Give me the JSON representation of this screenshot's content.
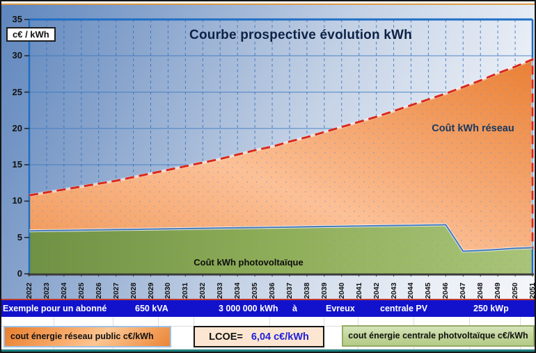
{
  "chart": {
    "title": "Courbe prospective évolution kWh",
    "y_axis_unit": "c€ / kWh",
    "series_label_reseau": "Coût kWh réseau",
    "series_label_pv": "Coût kWh photovoltaïque"
  },
  "chart_data": {
    "type": "area",
    "x": [
      2022,
      2023,
      2024,
      2025,
      2026,
      2027,
      2028,
      2029,
      2030,
      2031,
      2032,
      2033,
      2034,
      2035,
      2036,
      2037,
      2038,
      2039,
      2040,
      2041,
      2042,
      2043,
      2044,
      2045,
      2046,
      2047,
      2048,
      2049,
      2050,
      2051
    ],
    "series": [
      {
        "name": "cout énergie réseau public c€/kWh",
        "values": [
          10.8,
          11.2,
          11.6,
          12.0,
          12.4,
          12.8,
          13.3,
          13.8,
          14.3,
          14.8,
          15.3,
          15.8,
          16.4,
          17.0,
          17.5,
          18.2,
          18.8,
          19.5,
          20.2,
          20.9,
          21.6,
          22.4,
          23.2,
          24.0,
          24.8,
          25.7,
          26.6,
          27.6,
          28.5,
          29.5
        ],
        "fill": "orange-gradient",
        "line_color": "#d8281b",
        "line_style": "dashed"
      },
      {
        "name": "cout énergie centrale photvoltaïque c€/kWh",
        "values": [
          5.9,
          5.94,
          5.97,
          6.01,
          6.04,
          6.08,
          6.11,
          6.15,
          6.18,
          6.22,
          6.25,
          6.29,
          6.32,
          6.36,
          6.39,
          6.43,
          6.46,
          6.5,
          6.53,
          6.57,
          6.6,
          6.64,
          6.67,
          6.71,
          6.74,
          3.1,
          3.2,
          3.35,
          3.5,
          3.6
        ],
        "fill": "green-gradient",
        "line_color": "#4a7ebd",
        "line_style": "solid"
      }
    ],
    "ylabel": "c€ / kWh",
    "ylim": [
      0,
      35
    ],
    "yticks": [
      0,
      5,
      10,
      15,
      20,
      25,
      30,
      35
    ],
    "grid": true,
    "legend_position": "bottom"
  },
  "info_bar": {
    "items": [
      "Exemple pour un abonné",
      "650 kVA",
      "3 000 000 kWh",
      "à",
      "Evreux",
      "centrale PV",
      "250 kWp"
    ]
  },
  "legend": {
    "reseau_label": "cout énergie réseau public c€/kWh",
    "lcoe_label": "LCOE=",
    "lcoe_value": "6,04 c€/kWh",
    "pv_label": "cout énergie centrale photvoltaïque c€/kWh"
  },
  "colors": {
    "info_bar_bg": "#1212cc",
    "lcoe_value": "#1f1fd9",
    "reseau_line": "#d8281b",
    "pv_line": "#4a7ebd",
    "plot_frame": "#1f6ec4",
    "teal_border": "#1b8080",
    "red_divider": "#c0392b"
  }
}
